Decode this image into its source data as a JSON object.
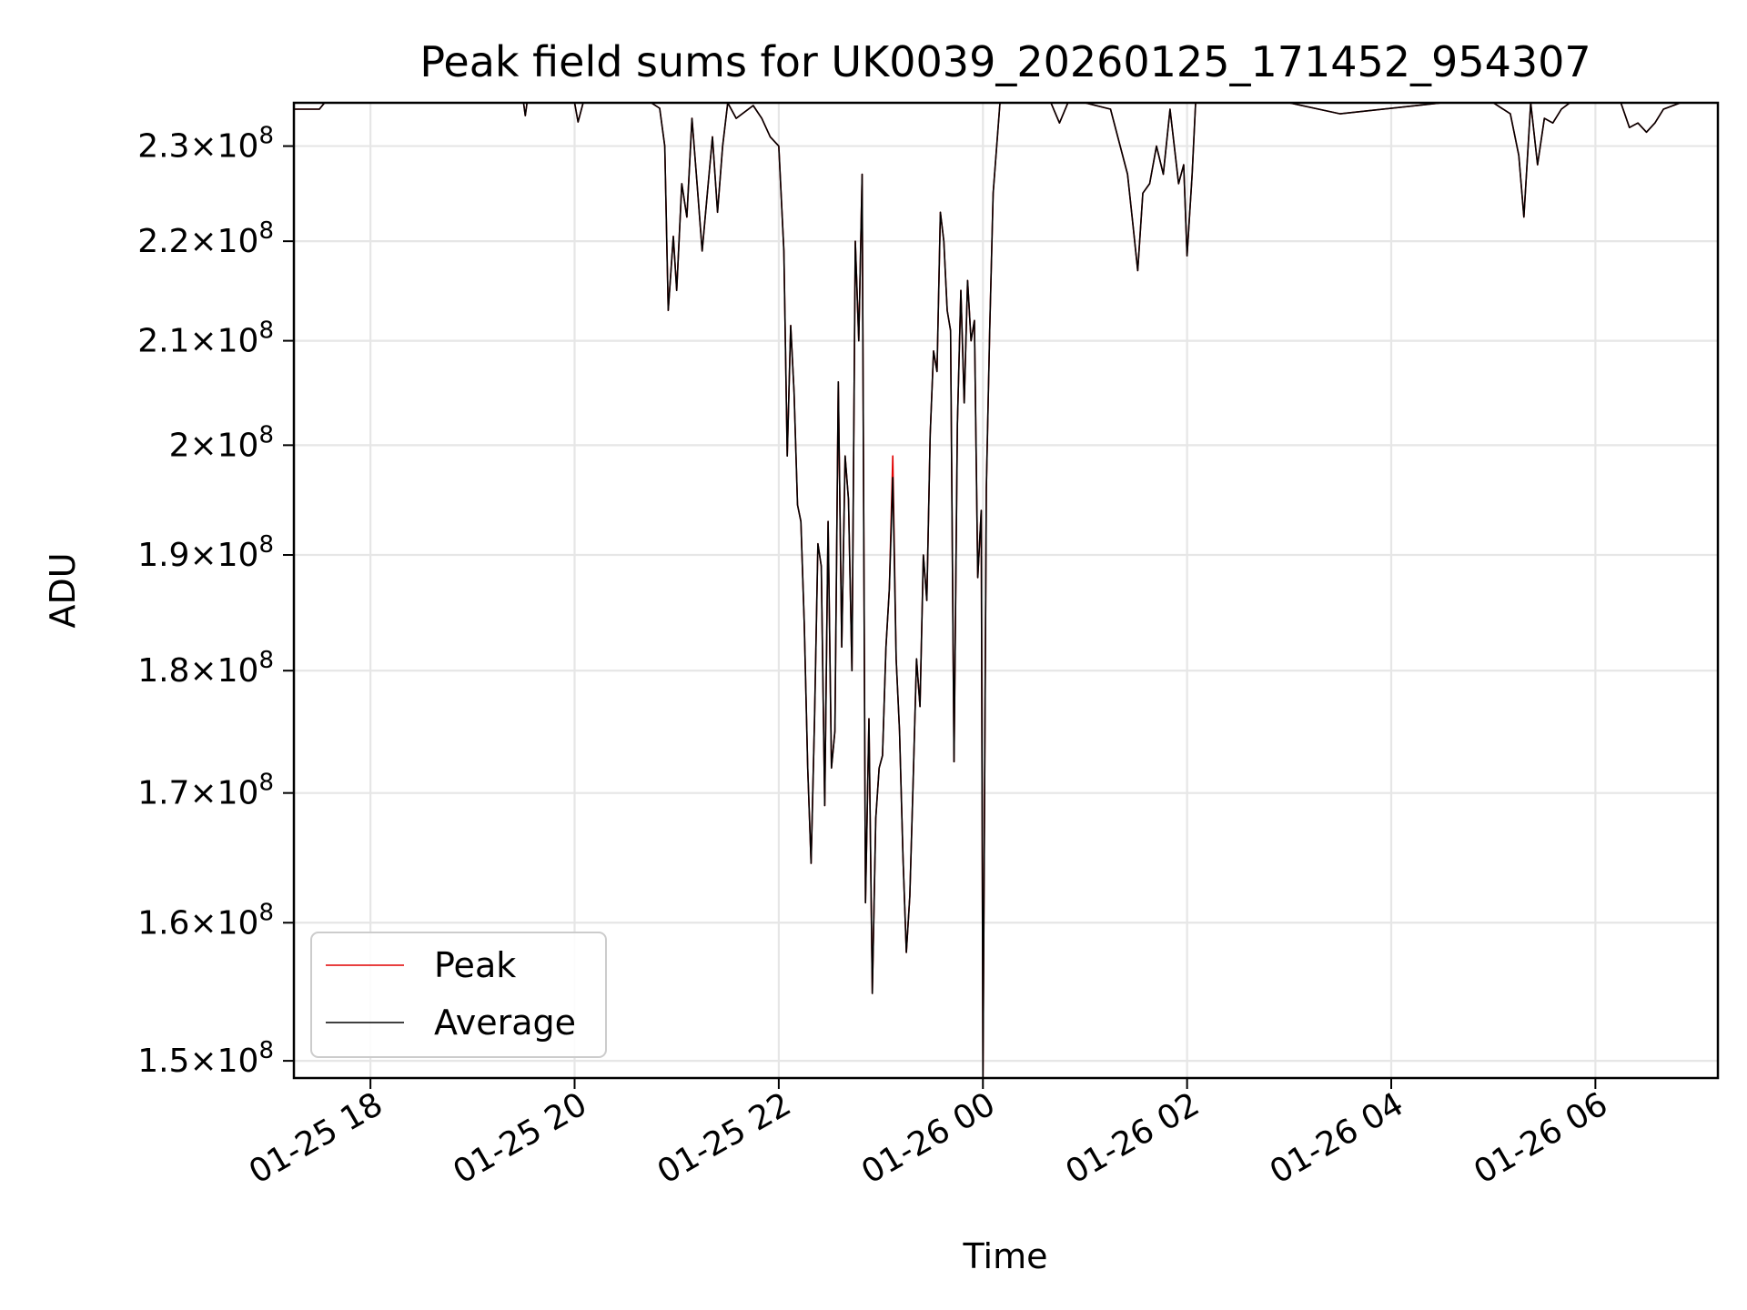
{
  "chart_data": {
    "type": "line",
    "title": "Peak field sums for UK0039_20260125_171452_954307",
    "xlabel": "Time",
    "ylabel": "ADU",
    "yscale": "log",
    "ylim": [
      148800000,
      234700000
    ],
    "xlim": [
      "2026-01-25T17:15",
      "2026-01-26T07:12"
    ],
    "grid": true,
    "legend": "lower-left",
    "x_ticks": [
      {
        "t": "2026-01-25T18:00",
        "label": "01-25 18"
      },
      {
        "t": "2026-01-25T20:00",
        "label": "01-25 20"
      },
      {
        "t": "2026-01-25T22:00",
        "label": "01-25 22"
      },
      {
        "t": "2026-01-26T00:00",
        "label": "01-26 00"
      },
      {
        "t": "2026-01-26T02:00",
        "label": "01-26 02"
      },
      {
        "t": "2026-01-26T04:00",
        "label": "01-26 04"
      },
      {
        "t": "2026-01-26T06:00",
        "label": "01-26 06"
      }
    ],
    "y_ticks": [
      {
        "value": 150000000,
        "mantissa": "1.5"
      },
      {
        "value": 160000000,
        "mantissa": "1.6"
      },
      {
        "value": 170000000,
        "mantissa": "1.7"
      },
      {
        "value": 180000000,
        "mantissa": "1.8"
      },
      {
        "value": 190000000,
        "mantissa": "1.9"
      },
      {
        "value": 200000000,
        "mantissa": "2"
      },
      {
        "value": 210000000,
        "mantissa": "2.1"
      },
      {
        "value": 220000000,
        "mantissa": "2.2"
      },
      {
        "value": 230000000,
        "mantissa": "2.3"
      }
    ],
    "y_tick_format": {
      "times": "×",
      "base": "10",
      "exponent": "8"
    },
    "series": [
      {
        "name": "Peak",
        "color": "#e00000",
        "x": [
          "2026-01-25T17:15",
          "2026-01-25T17:30",
          "2026-01-25T17:33",
          "2026-01-25T19:30",
          "2026-01-25T19:31",
          "2026-01-25T19:32",
          "2026-01-25T20:00",
          "2026-01-25T20:02",
          "2026-01-25T20:05",
          "2026-01-25T20:45",
          "2026-01-25T20:50",
          "2026-01-25T20:53",
          "2026-01-25T20:55",
          "2026-01-25T20:58",
          "2026-01-25T21:00",
          "2026-01-25T21:03",
          "2026-01-25T21:06",
          "2026-01-25T21:09",
          "2026-01-25T21:12",
          "2026-01-25T21:15",
          "2026-01-25T21:18",
          "2026-01-25T21:21",
          "2026-01-25T21:24",
          "2026-01-25T21:27",
          "2026-01-25T21:30",
          "2026-01-25T21:35",
          "2026-01-25T21:45",
          "2026-01-25T21:50",
          "2026-01-25T21:55",
          "2026-01-25T22:00",
          "2026-01-25T22:03",
          "2026-01-25T22:05",
          "2026-01-25T22:07",
          "2026-01-25T22:09",
          "2026-01-25T22:11",
          "2026-01-25T22:13",
          "2026-01-25T22:15",
          "2026-01-25T22:17",
          "2026-01-25T22:19",
          "2026-01-25T22:21",
          "2026-01-25T22:23",
          "2026-01-25T22:25",
          "2026-01-25T22:27",
          "2026-01-25T22:29",
          "2026-01-25T22:31",
          "2026-01-25T22:33",
          "2026-01-25T22:35",
          "2026-01-25T22:37",
          "2026-01-25T22:39",
          "2026-01-25T22:41",
          "2026-01-25T22:43",
          "2026-01-25T22:45",
          "2026-01-25T22:47",
          "2026-01-25T22:49",
          "2026-01-25T22:51",
          "2026-01-25T22:53",
          "2026-01-25T22:55",
          "2026-01-25T22:57",
          "2026-01-25T22:59",
          "2026-01-25T23:01",
          "2026-01-25T23:03",
          "2026-01-25T23:05",
          "2026-01-25T23:07",
          "2026-01-25T23:09",
          "2026-01-25T23:11",
          "2026-01-25T23:13",
          "2026-01-25T23:15",
          "2026-01-25T23:17",
          "2026-01-25T23:19",
          "2026-01-25T23:21",
          "2026-01-25T23:23",
          "2026-01-25T23:25",
          "2026-01-25T23:27",
          "2026-01-25T23:29",
          "2026-01-25T23:31",
          "2026-01-25T23:33",
          "2026-01-25T23:35",
          "2026-01-25T23:37",
          "2026-01-25T23:39",
          "2026-01-25T23:41",
          "2026-01-25T23:43",
          "2026-01-25T23:45",
          "2026-01-25T23:47",
          "2026-01-25T23:49",
          "2026-01-25T23:51",
          "2026-01-25T23:53",
          "2026-01-25T23:55",
          "2026-01-25T23:57",
          "2026-01-25T23:59",
          "2026-01-26T00:00",
          "2026-01-26T00:02",
          "2026-01-26T00:04",
          "2026-01-26T00:06",
          "2026-01-26T00:10",
          "2026-01-26T00:20",
          "2026-01-26T00:40",
          "2026-01-26T00:45",
          "2026-01-26T00:50",
          "2026-01-26T01:00",
          "2026-01-26T01:15",
          "2026-01-26T01:25",
          "2026-01-26T01:28",
          "2026-01-26T01:31",
          "2026-01-26T01:34",
          "2026-01-26T01:38",
          "2026-01-26T01:42",
          "2026-01-26T01:46",
          "2026-01-26T01:50",
          "2026-01-26T01:55",
          "2026-01-26T01:58",
          "2026-01-26T02:00",
          "2026-01-26T02:03",
          "2026-01-26T02:05",
          "2026-01-26T02:15",
          "2026-01-26T03:00",
          "2026-01-26T03:30",
          "2026-01-26T04:30",
          "2026-01-26T05:00",
          "2026-01-26T05:10",
          "2026-01-26T05:15",
          "2026-01-26T05:18",
          "2026-01-26T05:22",
          "2026-01-26T05:26",
          "2026-01-26T05:30",
          "2026-01-26T05:35",
          "2026-01-26T05:40",
          "2026-01-26T05:45",
          "2026-01-26T06:00",
          "2026-01-26T06:15",
          "2026-01-26T06:20",
          "2026-01-26T06:25",
          "2026-01-26T06:30",
          "2026-01-26T06:35",
          "2026-01-26T06:40",
          "2026-01-26T06:50"
        ],
        "y": [
          234000000,
          234000000,
          234700000,
          234700000,
          233300000,
          234700000,
          234700000,
          232600000,
          234700000,
          234700000,
          234100000,
          230000000,
          213000000,
          220500000,
          215000000,
          226000000,
          222500000,
          233000000,
          226000000,
          219000000,
          225000000,
          231000000,
          223000000,
          230000000,
          234700000,
          233000000,
          234400000,
          233000000,
          231000000,
          230000000,
          219000000,
          199000000,
          211500000,
          205000000,
          194500000,
          193000000,
          184000000,
          172000000,
          164500000,
          176000000,
          191000000,
          189000000,
          169000000,
          193000000,
          172000000,
          175000000,
          206000000,
          182000000,
          199000000,
          195000000,
          180000000,
          220000000,
          210000000,
          227000000,
          161500000,
          176000000,
          154800000,
          168000000,
          172000000,
          173000000,
          182000000,
          187000000,
          199000000,
          181000000,
          175000000,
          165000000,
          157800000,
          162000000,
          171000000,
          181000000,
          177000000,
          190000000,
          186000000,
          201000000,
          209000000,
          207000000,
          223000000,
          220000000,
          213000000,
          211000000,
          172500000,
          202000000,
          215000000,
          204000000,
          216000000,
          210000000,
          212000000,
          188000000,
          194000000,
          148800000,
          196000000,
          211000000,
          225000000,
          234700000,
          234700000,
          234700000,
          232500000,
          234700000,
          234700000,
          234000000,
          227000000,
          222000000,
          217000000,
          225000000,
          226000000,
          230000000,
          227000000,
          234000000,
          226000000,
          228000000,
          218500000,
          227000000,
          234700000,
          234700000,
          234700000,
          233500000,
          234700000,
          234700000,
          233500000,
          229000000,
          222500000,
          234700000,
          228000000,
          233000000,
          232500000,
          234000000,
          234700000,
          234700000,
          234700000,
          232000000,
          232500000,
          231500000,
          232500000,
          234000000,
          234700000
        ]
      },
      {
        "name": "Average",
        "color": "#000000",
        "x": [
          "2026-01-25T17:15",
          "2026-01-25T17:30",
          "2026-01-25T17:33",
          "2026-01-25T19:30",
          "2026-01-25T19:31",
          "2026-01-25T19:32",
          "2026-01-25T20:00",
          "2026-01-25T20:02",
          "2026-01-25T20:05",
          "2026-01-25T20:45",
          "2026-01-25T20:50",
          "2026-01-25T20:53",
          "2026-01-25T20:55",
          "2026-01-25T20:58",
          "2026-01-25T21:00",
          "2026-01-25T21:03",
          "2026-01-25T21:06",
          "2026-01-25T21:09",
          "2026-01-25T21:12",
          "2026-01-25T21:15",
          "2026-01-25T21:18",
          "2026-01-25T21:21",
          "2026-01-25T21:24",
          "2026-01-25T21:27",
          "2026-01-25T21:30",
          "2026-01-25T21:35",
          "2026-01-25T21:45",
          "2026-01-25T21:50",
          "2026-01-25T21:55",
          "2026-01-25T22:00",
          "2026-01-25T22:03",
          "2026-01-25T22:05",
          "2026-01-25T22:07",
          "2026-01-25T22:09",
          "2026-01-25T22:11",
          "2026-01-25T22:13",
          "2026-01-25T22:15",
          "2026-01-25T22:17",
          "2026-01-25T22:19",
          "2026-01-25T22:21",
          "2026-01-25T22:23",
          "2026-01-25T22:25",
          "2026-01-25T22:27",
          "2026-01-25T22:29",
          "2026-01-25T22:31",
          "2026-01-25T22:33",
          "2026-01-25T22:35",
          "2026-01-25T22:37",
          "2026-01-25T22:39",
          "2026-01-25T22:41",
          "2026-01-25T22:43",
          "2026-01-25T22:45",
          "2026-01-25T22:47",
          "2026-01-25T22:49",
          "2026-01-25T22:51",
          "2026-01-25T22:53",
          "2026-01-25T22:55",
          "2026-01-25T22:57",
          "2026-01-25T22:59",
          "2026-01-25T23:01",
          "2026-01-25T23:03",
          "2026-01-25T23:05",
          "2026-01-25T23:07",
          "2026-01-25T23:09",
          "2026-01-25T23:11",
          "2026-01-25T23:13",
          "2026-01-25T23:15",
          "2026-01-25T23:17",
          "2026-01-25T23:19",
          "2026-01-25T23:21",
          "2026-01-25T23:23",
          "2026-01-25T23:25",
          "2026-01-25T23:27",
          "2026-01-25T23:29",
          "2026-01-25T23:31",
          "2026-01-25T23:33",
          "2026-01-25T23:35",
          "2026-01-25T23:37",
          "2026-01-25T23:39",
          "2026-01-25T23:41",
          "2026-01-25T23:43",
          "2026-01-25T23:45",
          "2026-01-25T23:47",
          "2026-01-25T23:49",
          "2026-01-25T23:51",
          "2026-01-25T23:53",
          "2026-01-25T23:55",
          "2026-01-25T23:57",
          "2026-01-25T23:59",
          "2026-01-26T00:00",
          "2026-01-26T00:02",
          "2026-01-26T00:04",
          "2026-01-26T00:06",
          "2026-01-26T00:10",
          "2026-01-26T00:20",
          "2026-01-26T00:40",
          "2026-01-26T00:45",
          "2026-01-26T00:50",
          "2026-01-26T01:00",
          "2026-01-26T01:15",
          "2026-01-26T01:25",
          "2026-01-26T01:28",
          "2026-01-26T01:31",
          "2026-01-26T01:34",
          "2026-01-26T01:38",
          "2026-01-26T01:42",
          "2026-01-26T01:46",
          "2026-01-26T01:50",
          "2026-01-26T01:55",
          "2026-01-26T01:58",
          "2026-01-26T02:00",
          "2026-01-26T02:03",
          "2026-01-26T02:05",
          "2026-01-26T02:15",
          "2026-01-26T03:00",
          "2026-01-26T03:30",
          "2026-01-26T04:30",
          "2026-01-26T05:00",
          "2026-01-26T05:10",
          "2026-01-26T05:15",
          "2026-01-26T05:18",
          "2026-01-26T05:22",
          "2026-01-26T05:26",
          "2026-01-26T05:30",
          "2026-01-26T05:35",
          "2026-01-26T05:40",
          "2026-01-26T05:45",
          "2026-01-26T06:00",
          "2026-01-26T06:15",
          "2026-01-26T06:20",
          "2026-01-26T06:25",
          "2026-01-26T06:30",
          "2026-01-26T06:35",
          "2026-01-26T06:40",
          "2026-01-26T06:50"
        ],
        "y": [
          234000000,
          234000000,
          234700000,
          234700000,
          233300000,
          234700000,
          234700000,
          232600000,
          234700000,
          234700000,
          234100000,
          230000000,
          213000000,
          220500000,
          215000000,
          226000000,
          222500000,
          233000000,
          226000000,
          219000000,
          225000000,
          231000000,
          223000000,
          230000000,
          234700000,
          233000000,
          234400000,
          233000000,
          231000000,
          230000000,
          219000000,
          199000000,
          211500000,
          205000000,
          194500000,
          193000000,
          184000000,
          172000000,
          164500000,
          176000000,
          191000000,
          189000000,
          169000000,
          193000000,
          172000000,
          175000000,
          206000000,
          182000000,
          199000000,
          195000000,
          180000000,
          220000000,
          210000000,
          227000000,
          161500000,
          176000000,
          154800000,
          168000000,
          172000000,
          173000000,
          182000000,
          187000000,
          197000000,
          181000000,
          175000000,
          165000000,
          157800000,
          162000000,
          171000000,
          181000000,
          177000000,
          190000000,
          186000000,
          201000000,
          209000000,
          207000000,
          223000000,
          220000000,
          213000000,
          211000000,
          172500000,
          202000000,
          215000000,
          204000000,
          216000000,
          210000000,
          212000000,
          188000000,
          194000000,
          148800000,
          196000000,
          211000000,
          225000000,
          234700000,
          234700000,
          234700000,
          232500000,
          234700000,
          234700000,
          234000000,
          227000000,
          222000000,
          217000000,
          225000000,
          226000000,
          230000000,
          227000000,
          234000000,
          226000000,
          228000000,
          218500000,
          227000000,
          234700000,
          234700000,
          234700000,
          233500000,
          234700000,
          234700000,
          233500000,
          229000000,
          222500000,
          234700000,
          228000000,
          233000000,
          232500000,
          234000000,
          234700000,
          234700000,
          234700000,
          232000000,
          232500000,
          231500000,
          232500000,
          234000000,
          234700000
        ]
      }
    ]
  }
}
